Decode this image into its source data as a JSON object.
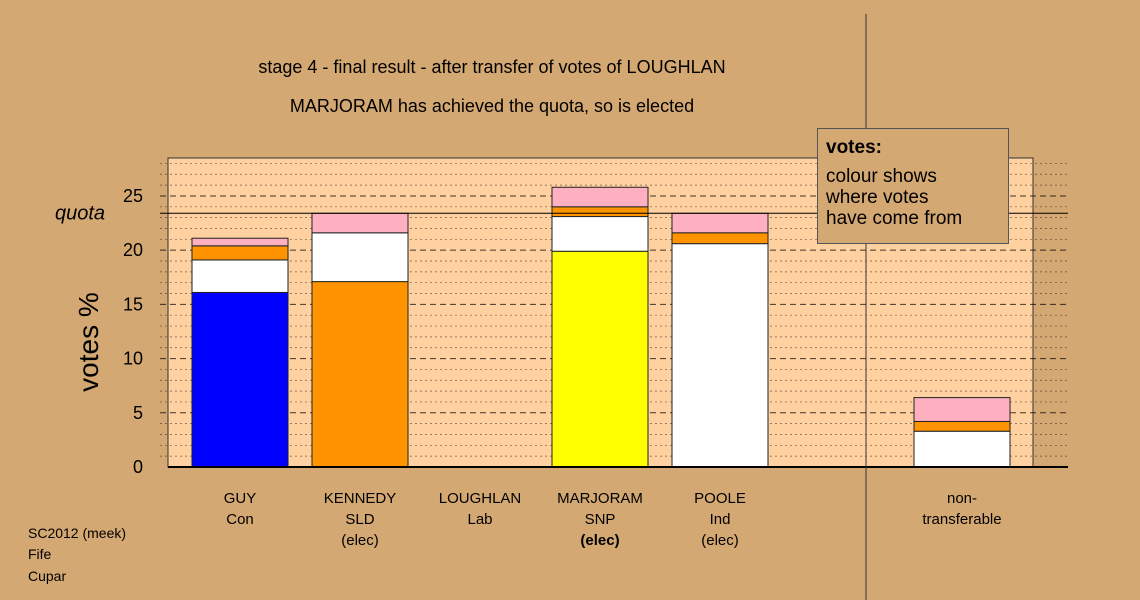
{
  "chart_data": {
    "type": "bar",
    "stacked": true,
    "title": "stage 4 - final result - after transfer of votes of LOUGHLAN",
    "subtitle": "MARJORAM has achieved the quota, so is elected",
    "ylabel": "votes %",
    "ylim": [
      0,
      28.5
    ],
    "yticks": [
      0,
      5,
      10,
      15,
      20,
      25
    ],
    "quota": 23.4,
    "quota_label": "quota",
    "grid": true,
    "candidates": [
      {
        "name": "GUY",
        "party": "Con",
        "status": "",
        "segments": [
          {
            "value": 16.1,
            "color": "#0000ff"
          },
          {
            "value": 3.0,
            "color": "#ffffff"
          },
          {
            "value": 1.3,
            "color": "#ff9400"
          },
          {
            "value": 0.7,
            "color": "#ffb0c0"
          }
        ]
      },
      {
        "name": "KENNEDY",
        "party": "SLD",
        "status": "(elec)",
        "segments": [
          {
            "value": 17.1,
            "color": "#ff9400"
          },
          {
            "value": 4.5,
            "color": "#ffffff"
          },
          {
            "value": 1.8,
            "color": "#ffb0c0"
          }
        ]
      },
      {
        "name": "LOUGHLAN",
        "party": "Lab",
        "status": "",
        "segments": []
      },
      {
        "name": "MARJORAM",
        "party": "SNP",
        "status": "(elec)",
        "bold_status": true,
        "segments": [
          {
            "value": 19.9,
            "color": "#ffff00"
          },
          {
            "value": 3.2,
            "color": "#ffffff"
          },
          {
            "value": 0.9,
            "color": "#ff9400"
          },
          {
            "value": 1.8,
            "color": "#ffb0c0"
          }
        ]
      },
      {
        "name": "POOLE",
        "party": "Ind",
        "status": "(elec)",
        "segments": [
          {
            "value": 20.6,
            "color": "#ffffff"
          },
          {
            "value": 1.0,
            "color": "#ff9400"
          },
          {
            "value": 1.8,
            "color": "#ffb0c0"
          }
        ]
      },
      {
        "name": "non-",
        "party": "transferable",
        "status": "",
        "segments": [
          {
            "value": 3.3,
            "color": "#ffffff"
          },
          {
            "value": 0.9,
            "color": "#ff9400"
          },
          {
            "value": 2.2,
            "color": "#ffb0c0"
          }
        ]
      }
    ],
    "legend": {
      "title": "votes:",
      "lines": [
        "colour shows",
        "where votes",
        "have come from"
      ]
    }
  },
  "footer": [
    "SC2012 (meek)",
    "Fife",
    "Cupar"
  ]
}
